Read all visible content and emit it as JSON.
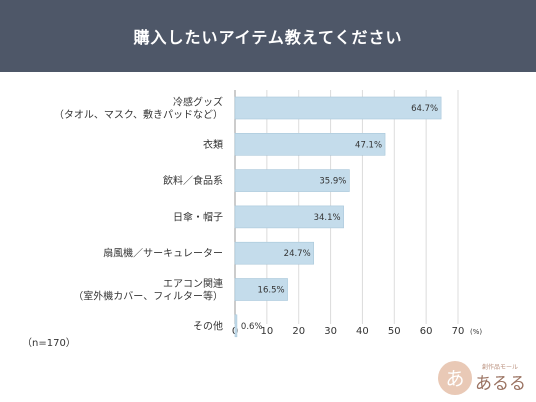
{
  "chart_data": {
    "type": "bar",
    "orientation": "horizontal",
    "title": "購入したいアイテム教えてください",
    "categories": [
      [
        "冷感グッズ",
        "（タオル、マスク、敷きパッドなど）"
      ],
      [
        "衣類"
      ],
      [
        "飲料／食品系"
      ],
      [
        "日傘・帽子"
      ],
      [
        "扇風機／サーキュレーター"
      ],
      [
        "エアコン関連",
        "（室外機カバー、フィルター等）"
      ],
      [
        "その他"
      ]
    ],
    "values": [
      64.7,
      47.1,
      35.9,
      34.1,
      24.7,
      16.5,
      0.6
    ],
    "value_labels": [
      "64.7%",
      "47.1%",
      "35.9%",
      "34.1%",
      "24.7%",
      "16.5%",
      "0.6%"
    ],
    "xlim": [
      0,
      70
    ],
    "xticks": [
      0,
      10,
      20,
      30,
      40,
      50,
      60,
      70
    ],
    "x_unit": "(%)",
    "grid": true,
    "note": "（n=170）"
  },
  "logo": {
    "subtitle": "創作品モール",
    "name": "あるる",
    "badge": "あ"
  },
  "colors": {
    "header": "#4e5768",
    "bar": "#c4dceb",
    "bar_stroke": "#a9c7da",
    "grid": "#dcdcdc",
    "axis": "#999999"
  }
}
